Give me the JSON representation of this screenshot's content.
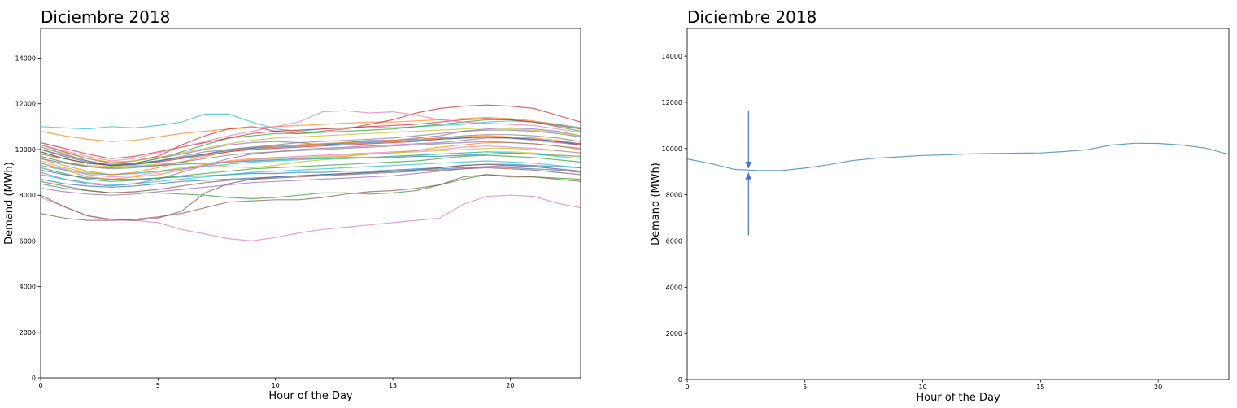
{
  "chart_data": [
    {
      "type": "line",
      "title": "Diciembre 2018",
      "xlabel": "Hour of the Day",
      "ylabel": "Demand (MWh)",
      "xlim": [
        0,
        23
      ],
      "ylim": [
        0,
        15300
      ],
      "xticks": [
        0,
        5,
        10,
        15,
        20
      ],
      "yticks": [
        0,
        2000,
        4000,
        6000,
        8000,
        10000,
        12000,
        14000
      ],
      "grid": false,
      "x": [
        0,
        1,
        2,
        3,
        4,
        5,
        6,
        7,
        8,
        9,
        10,
        11,
        12,
        13,
        14,
        15,
        16,
        17,
        18,
        19,
        20,
        21,
        22,
        23
      ],
      "series": [
        {
          "color": "#1f77b4",
          "values": [
            9600,
            9400,
            9250,
            9200,
            9250,
            9300,
            9350,
            9400,
            9450,
            9500,
            9550,
            9600,
            9600,
            9650,
            9650,
            9650,
            9700,
            9700,
            9750,
            9800,
            9850,
            9800,
            9750,
            9700
          ]
        },
        {
          "color": "#ff7f0e",
          "values": [
            10800,
            10600,
            10450,
            10350,
            10400,
            10550,
            10700,
            10800,
            10900,
            10950,
            11000,
            11050,
            11100,
            11150,
            11200,
            11200,
            11250,
            11300,
            11350,
            11400,
            11350,
            11250,
            11100,
            10950
          ]
        },
        {
          "color": "#2ca02c",
          "values": [
            8500,
            8300,
            8200,
            8100,
            8100,
            8100,
            8050,
            8000,
            7900,
            7850,
            7900,
            8000,
            8100,
            8100,
            8050,
            8100,
            8200,
            8450,
            8700,
            8900,
            8850,
            8800,
            8750,
            8700
          ]
        },
        {
          "color": "#d62728",
          "values": [
            10200,
            9900,
            9600,
            9400,
            9500,
            9700,
            10200,
            10600,
            10900,
            11000,
            10800,
            10700,
            10800,
            10900,
            11100,
            11300,
            11600,
            11800,
            11900,
            11950,
            11900,
            11800,
            11500,
            11200
          ]
        },
        {
          "color": "#9467bd",
          "values": [
            10100,
            9800,
            9500,
            9300,
            9400,
            9600,
            9800,
            10000,
            10200,
            10300,
            10350,
            10300,
            10200,
            10300,
            10400,
            10400,
            10500,
            10600,
            10800,
            10900,
            10950,
            10900,
            10800,
            10600
          ]
        },
        {
          "color": "#8c564b",
          "values": [
            7200,
            7000,
            6900,
            6900,
            6950,
            7050,
            7200,
            7450,
            7700,
            7750,
            7800,
            7800,
            7900,
            8050,
            8150,
            8200,
            8300,
            8450,
            8800,
            8900,
            8800,
            8800,
            8700,
            8600
          ]
        },
        {
          "color": "#e377c2",
          "values": [
            7900,
            7500,
            7100,
            6900,
            6900,
            6800,
            6500,
            6300,
            6100,
            6000,
            6150,
            6350,
            6500,
            6600,
            6700,
            6800,
            6900,
            7000,
            7600,
            7950,
            8000,
            7950,
            7650,
            7450
          ]
        },
        {
          "color": "#7f7f7f",
          "values": [
            9900,
            9600,
            9400,
            9350,
            9400,
            9500,
            9650,
            9800,
            10000,
            10100,
            10200,
            10300,
            10350,
            10400,
            10450,
            10500,
            10600,
            10700,
            10800,
            10850,
            10850,
            10800,
            10700,
            10550
          ]
        },
        {
          "color": "#bcbd22",
          "values": [
            9700,
            9450,
            9300,
            9250,
            9300,
            9350,
            9450,
            9350,
            9250,
            9200,
            9300,
            9450,
            9550,
            9600,
            9650,
            9700,
            9750,
            9800,
            9850,
            9900,
            9900,
            9850,
            9750,
            9700
          ]
        },
        {
          "color": "#17becf",
          "values": [
            11000,
            10950,
            10900,
            11000,
            10950,
            11050,
            11200,
            11550,
            11550,
            11200,
            10900,
            10800,
            10900,
            10950,
            11000,
            10950,
            11000,
            11050,
            11100,
            11200,
            11250,
            11200,
            11100,
            10950
          ]
        },
        {
          "color": "#1f77b4",
          "values": [
            9100,
            8900,
            8750,
            8700,
            8700,
            8750,
            8800,
            8850,
            8900,
            8950,
            8950,
            9000,
            9000,
            9050,
            9050,
            9100,
            9150,
            9200,
            9300,
            9350,
            9350,
            9300,
            9250,
            9200
          ]
        },
        {
          "color": "#ff7f0e",
          "values": [
            9400,
            9100,
            8800,
            8700,
            8800,
            8900,
            9100,
            9300,
            9500,
            9600,
            9650,
            9600,
            9650,
            9700,
            9800,
            9850,
            9950,
            10100,
            10200,
            10300,
            10300,
            10250,
            10150,
            10000
          ]
        },
        {
          "color": "#2ca02c",
          "values": [
            9800,
            9600,
            9400,
            9300,
            9400,
            9600,
            9900,
            10200,
            10500,
            10600,
            10700,
            10700,
            10750,
            10800,
            10850,
            10900,
            11000,
            11100,
            11200,
            11300,
            11300,
            11200,
            11000,
            10800
          ]
        },
        {
          "color": "#d62728",
          "values": [
            10300,
            10050,
            9800,
            9600,
            9700,
            9900,
            10100,
            10300,
            10500,
            10700,
            10800,
            10850,
            10900,
            10950,
            11000,
            11050,
            11100,
            11200,
            11300,
            11350,
            11300,
            11200,
            11050,
            10900
          ]
        },
        {
          "color": "#9467bd",
          "values": [
            9000,
            8700,
            8500,
            8400,
            8500,
            8700,
            9000,
            9300,
            9600,
            9800,
            9900,
            10000,
            10050,
            10100,
            10150,
            10200,
            10250,
            10300,
            10400,
            10500,
            10500,
            10400,
            10300,
            10200
          ]
        },
        {
          "color": "#8c564b",
          "values": [
            8000,
            7500,
            7100,
            6950,
            6900,
            7000,
            7300,
            8100,
            8500,
            8700,
            8800,
            8850,
            8900,
            8950,
            9000,
            9050,
            9100,
            9200,
            9300,
            9350,
            9300,
            9250,
            9150,
            9050
          ]
        },
        {
          "color": "#e377c2",
          "values": [
            10200,
            9950,
            9700,
            9500,
            9600,
            9850,
            10100,
            10350,
            10600,
            10800,
            11000,
            11200,
            11650,
            11700,
            11600,
            11650,
            11500,
            11300,
            11200,
            11150,
            11100,
            11050,
            10900,
            10750
          ]
        },
        {
          "color": "#7f7f7f",
          "values": [
            10000,
            9750,
            9500,
            9300,
            9350,
            9500,
            9700,
            9900,
            10000,
            10100,
            10150,
            10200,
            10250,
            10300,
            10350,
            10400,
            10450,
            10500,
            10600,
            10650,
            10650,
            10600,
            10500,
            10350
          ]
        },
        {
          "color": "#bcbd22",
          "values": [
            9500,
            9200,
            9000,
            8900,
            8950,
            9050,
            9200,
            9350,
            9450,
            9550,
            9600,
            9650,
            9700,
            9750,
            9800,
            9850,
            9900,
            9950,
            10000,
            10050,
            10050,
            10000,
            9950,
            9850
          ]
        },
        {
          "color": "#17becf",
          "values": [
            9300,
            9100,
            8950,
            8900,
            8950,
            9050,
            9150,
            9250,
            9350,
            9450,
            9500,
            9550,
            9600,
            9600,
            9650,
            9700,
            9750,
            9800,
            9850,
            9900,
            9850,
            9800,
            9700,
            9600
          ]
        },
        {
          "color": "#1f77b4",
          "values": [
            8700,
            8500,
            8400,
            8350,
            8400,
            8500,
            8600,
            8650,
            8700,
            8750,
            8800,
            8850,
            8900,
            8950,
            9000,
            9050,
            9100,
            9150,
            9200,
            9250,
            9200,
            9150,
            9100,
            9000
          ]
        },
        {
          "color": "#ff7f0e",
          "values": [
            9600,
            9300,
            9050,
            8900,
            9000,
            9200,
            9450,
            9700,
            9900,
            10050,
            10150,
            10200,
            10250,
            10300,
            10350,
            10400,
            10450,
            10500,
            10550,
            10600,
            10550,
            10500,
            10400,
            10250
          ]
        },
        {
          "color": "#2ca02c",
          "values": [
            9200,
            8950,
            8700,
            8600,
            8650,
            8750,
            8850,
            8950,
            9050,
            9150,
            9200,
            9250,
            9300,
            9350,
            9400,
            9450,
            9500,
            9600,
            9700,
            9750,
            9700,
            9650,
            9550,
            9450
          ]
        },
        {
          "color": "#d62728",
          "values": [
            9900,
            9600,
            9400,
            9300,
            9350,
            9450,
            9600,
            9750,
            9900,
            10000,
            10050,
            10100,
            10150,
            10200,
            10250,
            10300,
            10350,
            10450,
            10500,
            10550,
            10500,
            10450,
            10350,
            10200
          ]
        },
        {
          "color": "#9467bd",
          "values": [
            8300,
            8150,
            8050,
            8000,
            8050,
            8150,
            8250,
            8350,
            8450,
            8550,
            8600,
            8650,
            8700,
            8750,
            8800,
            8850,
            8950,
            9050,
            9150,
            9250,
            9300,
            9250,
            9150,
            9050
          ]
        },
        {
          "color": "#8c564b",
          "values": [
            8600,
            8400,
            8200,
            8100,
            8150,
            8250,
            8400,
            8550,
            8650,
            8700,
            8750,
            8800,
            8850,
            8900,
            8950,
            9000,
            9050,
            9100,
            9150,
            9200,
            9150,
            9100,
            9000,
            8900
          ]
        },
        {
          "color": "#e377c2",
          "values": [
            9400,
            9150,
            8900,
            8800,
            8850,
            9000,
            9150,
            9300,
            9450,
            9550,
            9650,
            9700,
            9750,
            9800,
            9850,
            9900,
            9950,
            10000,
            10100,
            10150,
            10100,
            10050,
            9950,
            9850
          ]
        },
        {
          "color": "#7f7f7f",
          "values": [
            9700,
            9450,
            9250,
            9150,
            9200,
            9300,
            9450,
            9600,
            9750,
            9850,
            9900,
            9950,
            10000,
            10050,
            10100,
            10150,
            10200,
            10250,
            10300,
            10350,
            10300,
            10250,
            10150,
            10050
          ]
        },
        {
          "color": "#bcbd22",
          "values": [
            10100,
            9850,
            9600,
            9450,
            9500,
            9650,
            9850,
            10050,
            10250,
            10400,
            10500,
            10550,
            10600,
            10650,
            10700,
            10750,
            10800,
            10850,
            10900,
            10950,
            10900,
            10850,
            10750,
            10600
          ]
        },
        {
          "color": "#17becf",
          "values": [
            8900,
            8700,
            8550,
            8450,
            8500,
            8600,
            8700,
            8800,
            8900,
            9000,
            9050,
            9100,
            9150,
            9200,
            9250,
            9300,
            9350,
            9400,
            9450,
            9500,
            9450,
            9400,
            9300,
            9200
          ]
        },
        {
          "color": "#1f77b4",
          "values": [
            10000,
            9700,
            9450,
            9300,
            9350,
            9500,
            9650,
            9800,
            9950,
            10050,
            10100,
            10150,
            10200,
            10250,
            10300,
            10350,
            10400,
            10450,
            10500,
            10550,
            10500,
            10450,
            10350,
            10250
          ]
        }
      ]
    },
    {
      "type": "line",
      "title": "Diciembre 2018",
      "xlabel": "Hour of the Day",
      "ylabel": "Demand (MWh)",
      "xlim": [
        0,
        23
      ],
      "ylim": [
        0,
        15200
      ],
      "xticks": [
        0,
        5,
        10,
        15,
        20
      ],
      "yticks": [
        0,
        2000,
        4000,
        6000,
        8000,
        10000,
        12000,
        14000
      ],
      "grid": false,
      "x": [
        0,
        1,
        2,
        3,
        4,
        5,
        6,
        7,
        8,
        9,
        10,
        11,
        12,
        13,
        14,
        15,
        16,
        17,
        18,
        19,
        20,
        21,
        22,
        23
      ],
      "series": [
        {
          "color": "#1f77b4",
          "values": [
            9550,
            9350,
            9100,
            9050,
            9050,
            9150,
            9300,
            9480,
            9580,
            9640,
            9700,
            9730,
            9770,
            9790,
            9800,
            9810,
            9870,
            9950,
            10150,
            10230,
            10220,
            10150,
            10020,
            9750
          ]
        }
      ],
      "annotations": [
        {
          "type": "arrow",
          "x": 2.6,
          "from_y": 11650,
          "to_y": 9150,
          "color": "#4472c4"
        },
        {
          "type": "arrow",
          "x": 2.6,
          "from_y": 6250,
          "to_y": 8950,
          "color": "#4472c4"
        }
      ]
    }
  ]
}
